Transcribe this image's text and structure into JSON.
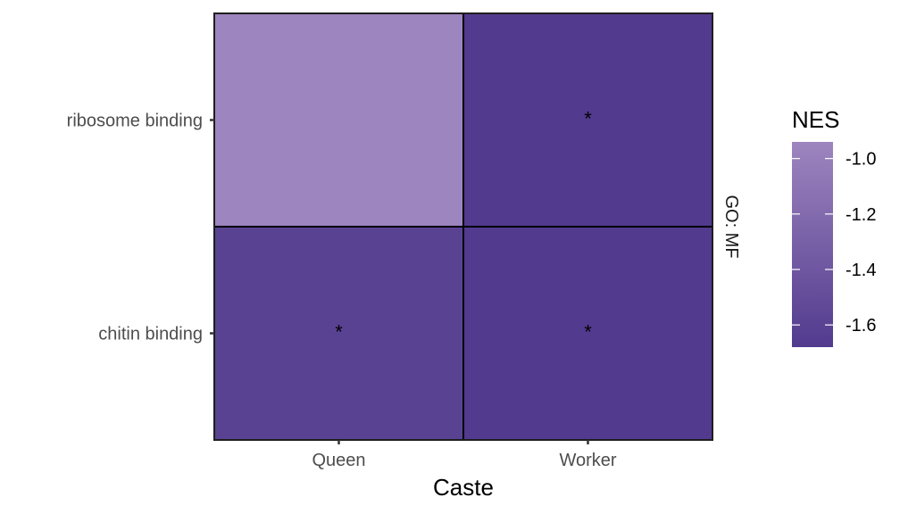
{
  "chart_data": {
    "type": "heatmap",
    "x_categories": [
      "Queen",
      "Worker"
    ],
    "y_categories": [
      "ribosome binding",
      "chitin binding"
    ],
    "xlabel": "Caste",
    "facet_label": "GO: MF",
    "cells": [
      {
        "x": "Queen",
        "y": "ribosome binding",
        "value": -0.94,
        "label": ""
      },
      {
        "x": "Worker",
        "y": "ribosome binding",
        "value": -1.68,
        "label": "*"
      },
      {
        "x": "Queen",
        "y": "chitin binding",
        "value": -1.6,
        "label": "*"
      },
      {
        "x": "Worker",
        "y": "chitin binding",
        "value": -1.68,
        "label": "*"
      }
    ],
    "legend": {
      "title": "NES",
      "ticks": [
        -1.0,
        -1.2,
        -1.4,
        -1.6
      ],
      "tick_labels": [
        "-1.0",
        "-1.2",
        "-1.4",
        "-1.6"
      ],
      "range": [
        -1.68,
        -0.94
      ],
      "color_low": "#523A8E",
      "color_high": "#9D85BF"
    }
  }
}
